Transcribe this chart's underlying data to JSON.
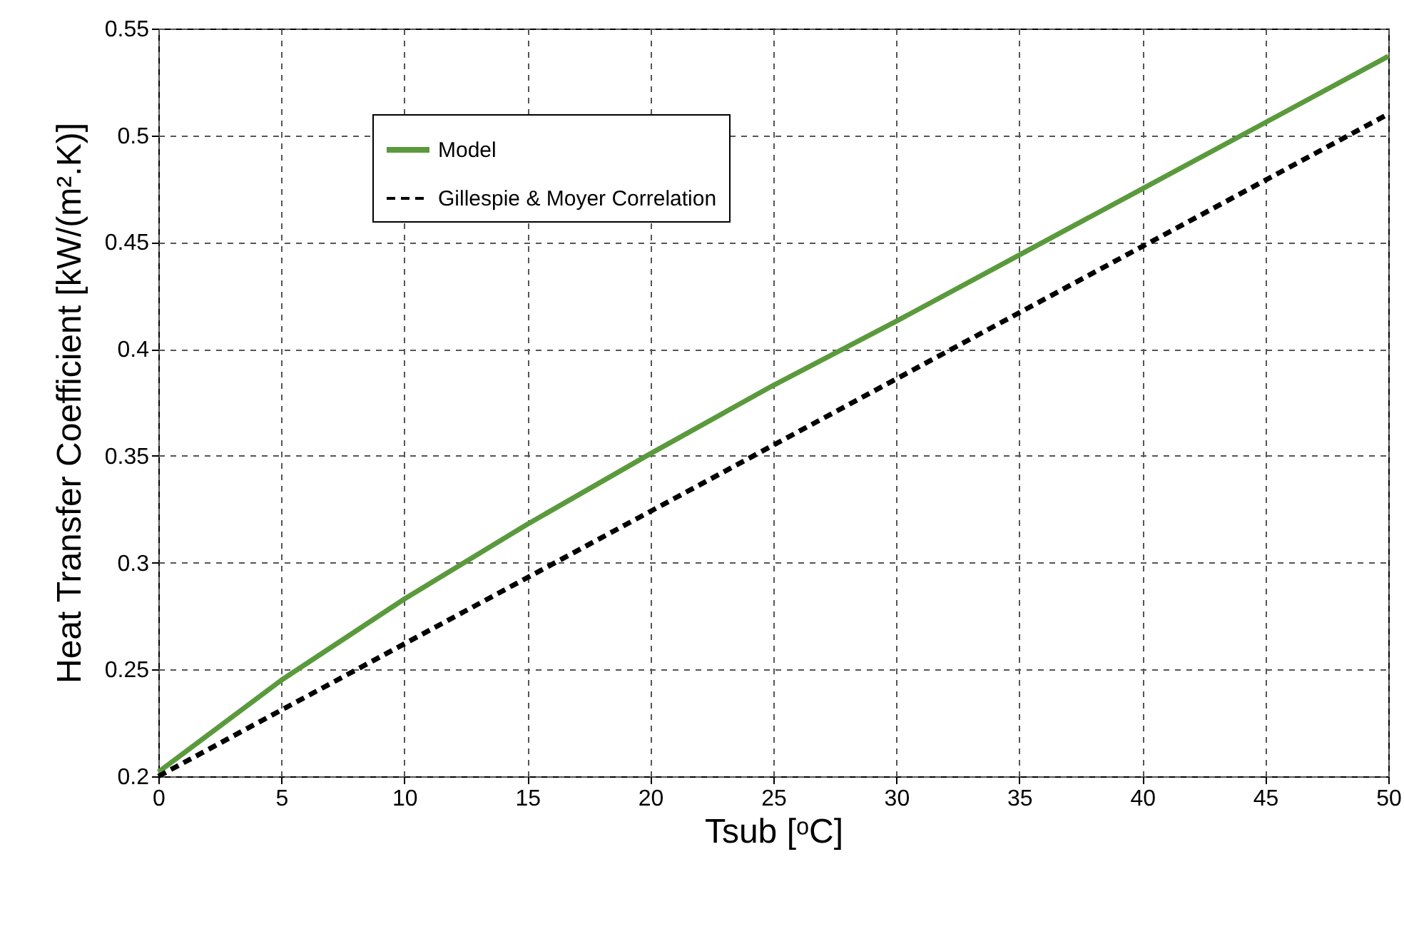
{
  "chart_data": {
    "type": "line",
    "xlabel": "Tsub [ᵒC]",
    "ylabel": "Heat Transfer Coefficient [kW/(m².K)]",
    "xlim": [
      0,
      50
    ],
    "xticks": [
      0,
      5,
      10,
      15,
      20,
      25,
      30,
      35,
      40,
      45,
      50
    ],
    "ylim": [
      0.2,
      0.55
    ],
    "yticks": [
      0.2,
      0.25,
      0.3,
      0.35,
      0.4,
      0.45,
      0.5,
      0.55
    ],
    "grid": true,
    "legend": "top left",
    "series": [
      {
        "name": "Model",
        "color": "#5a9a3c",
        "line_style": "solid",
        "x": [
          0,
          5,
          10,
          15,
          20,
          25,
          30,
          35,
          40,
          45,
          50
        ],
        "values": [
          0.202,
          0.245,
          0.283,
          0.318,
          0.351,
          0.383,
          0.413,
          0.444,
          0.475,
          0.506,
          0.537
        ]
      },
      {
        "name": "Gillespie & Moyer Correlation",
        "color": "#000000",
        "line_style": "dashed",
        "x": [
          0,
          10,
          20,
          30,
          40,
          50
        ],
        "values": [
          0.2,
          0.262,
          0.324,
          0.386,
          0.448,
          0.51
        ]
      }
    ]
  }
}
